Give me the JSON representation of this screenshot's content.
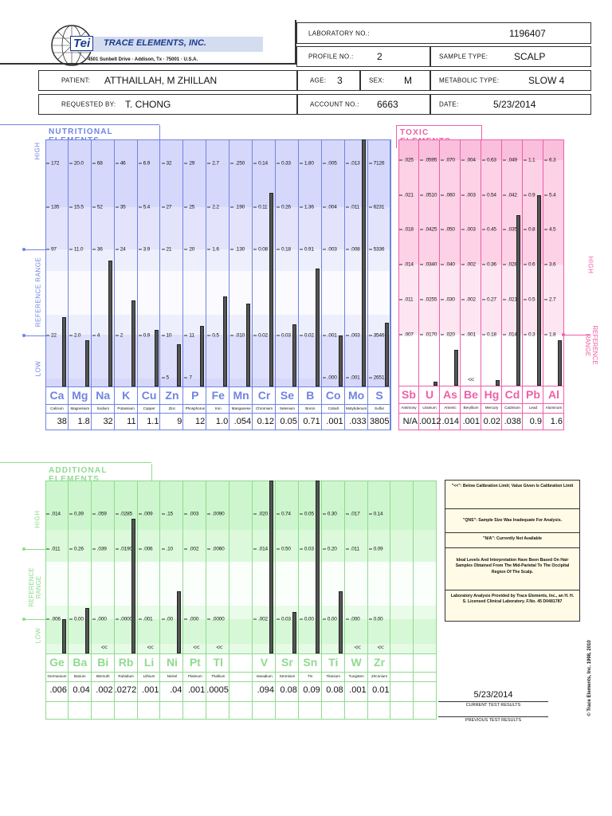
{
  "company": {
    "name": "TRACE ELEMENTS, INC.",
    "logo_text": "Tei",
    "address": "4501 Sunbelt Drive · Addison, Tx · 75001 · U.S.A."
  },
  "header": {
    "lab_no_label": "LABORATORY NO.:",
    "lab_no": "1196407",
    "profile_no_label": "PROFILE NO.:",
    "profile_no": "2",
    "sample_type_label": "SAMPLE TYPE:",
    "sample_type": "SCALP",
    "patient_label": "PATIENT:",
    "patient": "ATTHAILLAH, M ZHILLAN",
    "age_label": "AGE:",
    "age": "3",
    "sex_label": "SEX:",
    "sex": "M",
    "metabolic_label": "METABOLIC TYPE:",
    "metabolic": "SLOW 4",
    "requested_label": "REQUESTED BY:",
    "requested": "T. CHONG",
    "account_label": "ACCOUNT NO.:",
    "account": "6663",
    "date_label": "DATE:",
    "date": "5/23/2014"
  },
  "axis_labels": {
    "high": "HIGH",
    "reference": "REFERENCE RANGE",
    "low": "LOW",
    "reference_l1": "REFERENCE",
    "reference_l2": "RANGE"
  },
  "colors": {
    "nutritional": "#6f84e2",
    "toxic": "#ee5fa8",
    "additional": "#8edb8e"
  },
  "nutritional": {
    "title": "NUTRITIONAL ELEMENTS",
    "elements": [
      {
        "sym": "Ca",
        "name": "Calcium",
        "value": "38",
        "ticks": [
          "172",
          "135",
          "97",
          "22",
          null
        ]
      },
      {
        "sym": "Mg",
        "name": "Magnesium",
        "value": "1.8",
        "ticks": [
          "20.0",
          "15.5",
          "11.0",
          "2.0",
          null
        ]
      },
      {
        "sym": "Na",
        "name": "Sodium",
        "value": "32",
        "ticks": [
          "68",
          "52",
          "36",
          "4",
          null
        ]
      },
      {
        "sym": "K",
        "name": "Potassium",
        "value": "11",
        "ticks": [
          "46",
          "35",
          "24",
          "2",
          null
        ]
      },
      {
        "sym": "Cu",
        "name": "Copper",
        "value": "1.1",
        "ticks": [
          "6.9",
          "5.4",
          "3.9",
          "0.9",
          null
        ]
      },
      {
        "sym": "Zn",
        "name": "Zinc",
        "value": "9",
        "ticks": [
          "32",
          "27",
          "21",
          "10",
          "5"
        ]
      },
      {
        "sym": "P",
        "name": "Phosphorus",
        "value": "12",
        "ticks": [
          "29",
          "25",
          "20",
          "11",
          "7"
        ]
      },
      {
        "sym": "Fe",
        "name": "Iron",
        "value": "1.0",
        "ticks": [
          "2.7",
          "2.2",
          "1.6",
          "0.5",
          null
        ]
      },
      {
        "sym": "Mn",
        "name": "Manganese",
        "value": ".054",
        "ticks": [
          ".250",
          ".190",
          ".130",
          ".010",
          null
        ]
      },
      {
        "sym": "Cr",
        "name": "Chromium",
        "value": "0.12",
        "ticks": [
          "0.14",
          "0.11",
          "0.08",
          "0.02",
          null
        ]
      },
      {
        "sym": "Se",
        "name": "Selenium",
        "value": "0.05",
        "ticks": [
          "0.33",
          "0.26",
          "0.18",
          "0.03",
          null
        ]
      },
      {
        "sym": "B",
        "name": "Boron",
        "value": "0.71",
        "ticks": [
          "1.80",
          "1.36",
          "0.91",
          "0.02",
          null
        ]
      },
      {
        "sym": "Co",
        "name": "Cobalt",
        "value": ".001",
        "ticks": [
          ".005",
          ".004",
          ".003",
          ".001",
          ".000"
        ]
      },
      {
        "sym": "Mo",
        "name": "Molybdenum",
        "value": ".033",
        "ticks": [
          ".013",
          ".011",
          ".008",
          ".003",
          ".001"
        ]
      },
      {
        "sym": "S",
        "name": "Sulfur",
        "value": "3805",
        "ticks": [
          "7126",
          "6231",
          "5336",
          "3546",
          "2651"
        ]
      }
    ]
  },
  "toxic": {
    "title": "TOXIC ELEMENTS",
    "elements": [
      {
        "sym": "Sb",
        "name": "Antimony",
        "value": "N/A",
        "ticks": [
          ".025",
          ".021",
          ".018",
          ".014",
          ".011",
          ".007"
        ]
      },
      {
        "sym": "U",
        "name": "Uranium",
        "value": ".0012",
        "ticks": [
          ".0595",
          ".0510",
          ".0425",
          ".0340",
          ".0255",
          ".0170"
        ]
      },
      {
        "sym": "As",
        "name": "Arsenic",
        "value": ".014",
        "ticks": [
          ".070",
          ".060",
          ".050",
          ".040",
          ".030",
          ".020"
        ]
      },
      {
        "sym": "Be",
        "name": "Beryllium",
        "value": ".001",
        "below_limit": true,
        "ticks": [
          ".004",
          ".003",
          ".003",
          ".002",
          ".002",
          ".001"
        ]
      },
      {
        "sym": "Hg",
        "name": "Mercury",
        "value": "0.02",
        "ticks": [
          "0.63",
          "0.54",
          "0.45",
          "0.36",
          "0.27",
          "0.18"
        ]
      },
      {
        "sym": "Cd",
        "name": "Cadmium",
        "value": ".038",
        "ticks": [
          ".049",
          ".042",
          ".035",
          ".028",
          ".021",
          ".014"
        ]
      },
      {
        "sym": "Pb",
        "name": "Lead",
        "value": "0.9",
        "ticks": [
          "1.1",
          "0.9",
          "0.8",
          "0.6",
          "0.5",
          "0.3"
        ]
      },
      {
        "sym": "Al",
        "name": "Aluminum",
        "value": "1.6",
        "ticks": [
          "6.3",
          "5.4",
          "4.5",
          "3.6",
          "2.7",
          "1.8"
        ]
      }
    ]
  },
  "additional": {
    "title": "ADDITIONAL ELEMENTS",
    "elements": [
      {
        "sym": "Ge",
        "name": "Germanium",
        "value": ".006",
        "ticks": [
          ".014",
          ".011",
          ".006"
        ]
      },
      {
        "sym": "Ba",
        "name": "Barium",
        "value": "0.04",
        "ticks": [
          "0.39",
          "0.26",
          "0.00"
        ]
      },
      {
        "sym": "Bi",
        "name": "Bismuth",
        "value": ".002",
        "below_limit": true,
        "ticks": [
          ".059",
          ".039",
          ".000"
        ]
      },
      {
        "sym": "Rb",
        "name": "Rubidium",
        "value": ".0272",
        "ticks": [
          ".0285",
          ".0190",
          ".0000"
        ]
      },
      {
        "sym": "Li",
        "name": "Lithium",
        "value": ".001",
        "below_limit": true,
        "ticks": [
          ".009",
          ".006",
          ".001"
        ]
      },
      {
        "sym": "Ni",
        "name": "Nickel",
        "value": ".04",
        "ticks": [
          ".15",
          ".10",
          ".00"
        ]
      },
      {
        "sym": "Pt",
        "name": "Platinum",
        "value": ".001",
        "below_limit": true,
        "ticks": [
          ".003",
          ".002",
          ".000"
        ]
      },
      {
        "sym": "Tl",
        "name": "Thallium",
        "value": ".0005",
        "below_limit": true,
        "ticks": [
          ".0090",
          ".0060",
          ".0000"
        ]
      },
      null,
      {
        "sym": "V",
        "name": "Vanadium",
        "value": ".094",
        "ticks": [
          ".020",
          ".014",
          ".002"
        ]
      },
      {
        "sym": "Sr",
        "name": "Strontium",
        "value": "0.08",
        "ticks": [
          "0.74",
          "0.50",
          "0.03"
        ]
      },
      {
        "sym": "Sn",
        "name": "Tin",
        "value": "0.09",
        "ticks": [
          "0.05",
          "0.03",
          "0.00"
        ]
      },
      {
        "sym": "Ti",
        "name": "Titanium",
        "value": "0.08",
        "ticks": [
          "0.30",
          "0.20",
          "0.00"
        ]
      },
      {
        "sym": "W",
        "name": "Tungsten",
        "value": ".001",
        "below_limit": true,
        "ticks": [
          ".017",
          ".011",
          ".000"
        ]
      },
      {
        "sym": "Zr",
        "name": "Zirconium",
        "value": "0.01",
        "below_limit": true,
        "ticks": [
          "0.14",
          "0.09",
          "0.00"
        ]
      },
      null,
      null
    ]
  },
  "below_limit_mark": "<<",
  "notes": [
    "\"<<\": Below Calibration Limit; Value Given Is Calibration Limit",
    "\"QNS\": Sample Size Was Inadequate For Analysis.",
    "\"N/A\": Currently Not Available",
    "Ideal Levels And Interpretation Have Been Based On Hair Samples Obtained From The Mid-Parietal To The Occipital Region Of The Scalp.",
    "Laboratory Analysis Provided by Trace Elements, Inc., an H. H. S. Licensed Clinical Laboratory.     F.No. 45 D0481787"
  ],
  "results": {
    "current_date": "5/23/2014",
    "current_label": "CURRENT TEST RESULTS",
    "previous_label": "PREVIOUS TEST RESULTS"
  },
  "copyright": "© Trace Elements, Inc. 1998, 2010"
}
